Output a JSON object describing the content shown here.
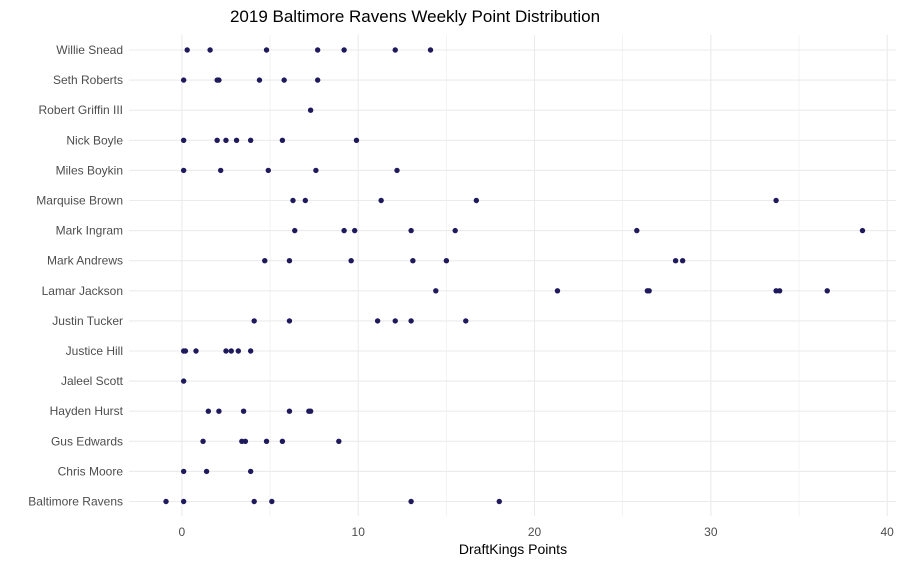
{
  "chart_data": {
    "type": "scatter",
    "title": "2019 Baltimore Ravens Weekly Point Distribution",
    "xlabel": "DraftKings Points",
    "ylabel": "",
    "xlim": [
      -3,
      40.5
    ],
    "xticks": [
      0,
      10,
      20,
      30,
      40
    ],
    "grid": true,
    "point_color": "#1f1a5c",
    "grid_color": "#ebebeb",
    "categories": [
      "Willie Snead",
      "Seth Roberts",
      "Robert Griffin III",
      "Nick Boyle",
      "Miles Boykin",
      "Marquise Brown",
      "Mark Ingram",
      "Mark Andrews",
      "Lamar Jackson",
      "Justin Tucker",
      "Justice Hill",
      "Jaleel Scott",
      "Hayden Hurst",
      "Gus Edwards",
      "Chris Moore",
      "Baltimore Ravens"
    ],
    "series": [
      {
        "category": "Willie Snead",
        "values": [
          0.3,
          1.6,
          4.8,
          7.7,
          9.2,
          12.1,
          14.1
        ]
      },
      {
        "category": "Seth Roberts",
        "values": [
          0.1,
          2.0,
          2.1,
          4.4,
          5.8,
          7.7
        ]
      },
      {
        "category": "Robert Griffin III",
        "values": [
          7.3
        ]
      },
      {
        "category": "Nick Boyle",
        "values": [
          0.1,
          2.0,
          2.5,
          3.1,
          3.9,
          5.7,
          9.9
        ]
      },
      {
        "category": "Miles Boykin",
        "values": [
          0.1,
          2.2,
          4.9,
          7.6,
          12.2
        ]
      },
      {
        "category": "Marquise Brown",
        "values": [
          6.3,
          7.0,
          11.3,
          16.7,
          33.7
        ]
      },
      {
        "category": "Mark Ingram",
        "values": [
          6.4,
          9.2,
          9.8,
          13.0,
          15.5,
          25.8,
          38.6
        ]
      },
      {
        "category": "Mark Andrews",
        "values": [
          4.7,
          6.1,
          9.6,
          13.1,
          15.0,
          28.0,
          28.4
        ]
      },
      {
        "category": "Lamar Jackson",
        "values": [
          14.4,
          21.3,
          26.4,
          26.5,
          33.7,
          33.9,
          36.6
        ]
      },
      {
        "category": "Justin Tucker",
        "values": [
          4.1,
          6.1,
          11.1,
          12.1,
          13.0,
          16.1
        ]
      },
      {
        "category": "Justice Hill",
        "values": [
          0.1,
          0.2,
          0.8,
          2.5,
          2.8,
          3.2,
          3.9
        ]
      },
      {
        "category": "Jaleel Scott",
        "values": [
          0.1
        ]
      },
      {
        "category": "Hayden Hurst",
        "values": [
          1.5,
          2.1,
          3.5,
          6.1,
          7.2,
          7.3
        ]
      },
      {
        "category": "Gus Edwards",
        "values": [
          1.2,
          3.4,
          3.6,
          4.8,
          5.7,
          8.9
        ]
      },
      {
        "category": "Chris Moore",
        "values": [
          0.1,
          1.4,
          3.9
        ]
      },
      {
        "category": "Baltimore Ravens",
        "values": [
          -0.9,
          0.1,
          4.1,
          5.1,
          13.0,
          18.0
        ]
      }
    ]
  }
}
